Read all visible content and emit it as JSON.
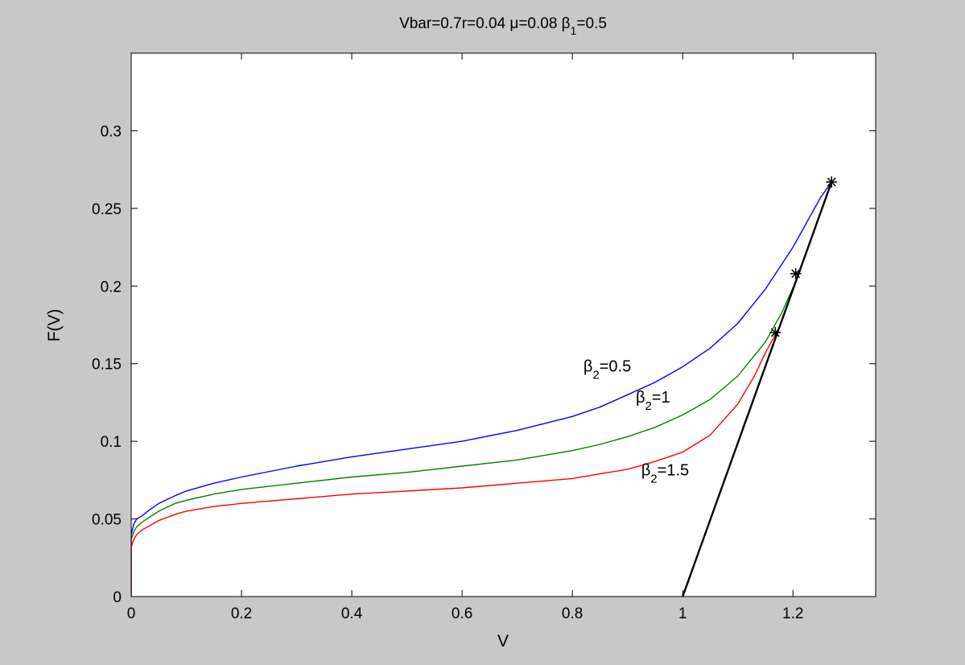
{
  "chart_data": {
    "type": "line",
    "title": "Vbar=0.7r=0.04 μ=0.08 β",
    "title_sub": "1",
    "title_tail": "=0.5",
    "xlabel": "V",
    "ylabel": "F(V)",
    "xlim": [
      0,
      1.35
    ],
    "ylim": [
      0,
      0.35
    ],
    "xticks": [
      0,
      0.2,
      0.4,
      0.6,
      0.8,
      1,
      1.2
    ],
    "xtick_labels": [
      "0",
      "0.2",
      "0.4",
      "0.6",
      "0.8",
      "1",
      "1.2"
    ],
    "yticks": [
      0,
      0.05,
      0.1,
      0.15,
      0.2,
      0.25,
      0.3
    ],
    "ytick_labels": [
      "0",
      "0.05",
      "0.1",
      "0.15",
      "0.2",
      "0.25",
      "0.3"
    ],
    "grid": false,
    "background": "#c8c8c8",
    "plot_background": "#ffffff",
    "series": [
      {
        "color": "#0000ff",
        "x": [
          0,
          0,
          0.005,
          0.01,
          0.02,
          0.03,
          0.05,
          0.08,
          0.1,
          0.15,
          0.2,
          0.3,
          0.4,
          0.5,
          0.6,
          0.7,
          0.8,
          0.85,
          0.9,
          0.95,
          1.0,
          1.05,
          1.1,
          1.15,
          1.2,
          1.25,
          1.27
        ],
        "y": [
          0,
          0.04,
          0.047,
          0.05,
          0.052,
          0.055,
          0.06,
          0.065,
          0.068,
          0.073,
          0.077,
          0.084,
          0.09,
          0.095,
          0.1,
          0.107,
          0.116,
          0.122,
          0.13,
          0.138,
          0.148,
          0.16,
          0.176,
          0.198,
          0.225,
          0.257,
          0.267
        ]
      },
      {
        "color": "#008000",
        "x": [
          0,
          0,
          0.005,
          0.01,
          0.02,
          0.05,
          0.08,
          0.1,
          0.15,
          0.2,
          0.3,
          0.4,
          0.5,
          0.6,
          0.7,
          0.8,
          0.85,
          0.9,
          0.95,
          1.0,
          1.05,
          1.1,
          1.15,
          1.18,
          1.21
        ],
        "y": [
          0,
          0.037,
          0.042,
          0.045,
          0.048,
          0.055,
          0.06,
          0.062,
          0.066,
          0.069,
          0.073,
          0.077,
          0.08,
          0.084,
          0.088,
          0.094,
          0.098,
          0.103,
          0.109,
          0.117,
          0.127,
          0.142,
          0.164,
          0.183,
          0.207
        ]
      },
      {
        "color": "#ff0000",
        "x": [
          0,
          0,
          0.005,
          0.01,
          0.02,
          0.05,
          0.08,
          0.1,
          0.15,
          0.2,
          0.3,
          0.4,
          0.5,
          0.6,
          0.7,
          0.8,
          0.85,
          0.9,
          0.95,
          1.0,
          1.05,
          1.1,
          1.13,
          1.15,
          1.17
        ],
        "y": [
          0,
          0.032,
          0.037,
          0.04,
          0.043,
          0.049,
          0.053,
          0.055,
          0.058,
          0.06,
          0.063,
          0.066,
          0.068,
          0.07,
          0.073,
          0.076,
          0.079,
          0.082,
          0.087,
          0.093,
          0.104,
          0.124,
          0.142,
          0.157,
          0.17
        ]
      },
      {
        "color": "#000000",
        "x": [
          1.0,
          1.27
        ],
        "y": [
          0,
          0.267
        ]
      }
    ],
    "markers": [
      {
        "x": 1.27,
        "y": 0.267,
        "symbol": "*"
      },
      {
        "x": 1.205,
        "y": 0.208,
        "symbol": "*"
      },
      {
        "x": 1.168,
        "y": 0.17,
        "symbol": "*"
      }
    ],
    "annotations": [
      {
        "text": "β",
        "sub": "2",
        "tail": "=0.5",
        "x": 0.82,
        "y": 0.145,
        "color": "#000000"
      },
      {
        "text": "β",
        "sub": "2",
        "tail": "=1",
        "x": 0.915,
        "y": 0.125,
        "color": "#000000"
      },
      {
        "text": "β",
        "sub": "2",
        "tail": "=1.5",
        "x": 0.925,
        "y": 0.078,
        "color": "#000000"
      }
    ]
  }
}
